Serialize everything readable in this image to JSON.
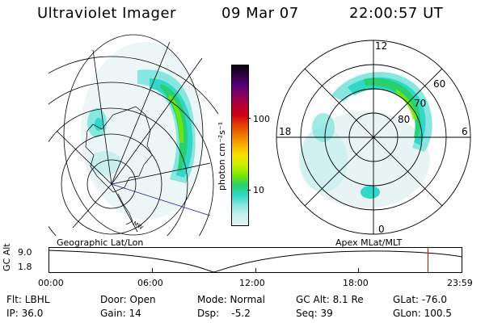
{
  "header": {
    "instrument": "Ultraviolet Imager",
    "date": "09 Mar 07",
    "time": "22:00:57 UT"
  },
  "colorbar": {
    "unit_label": "photon cm⁻²s⁻¹",
    "ticks": [
      "100",
      "10"
    ],
    "colors": [
      "#0a0010",
      "#300040",
      "#55007a",
      "#8a0060",
      "#b00035",
      "#d20014",
      "#e64000",
      "#f07800",
      "#f8b000",
      "#f8e000",
      "#c8f000",
      "#7ce800",
      "#28d070",
      "#30d8c8",
      "#88e6e0",
      "#c8eeee",
      "#e8f4f4"
    ]
  },
  "left_panel": {
    "caption": "Geographic Lat/Lon",
    "map_label": "MW"
  },
  "right_panel": {
    "caption": "Apex MLat/MLT",
    "mlt_labels": {
      "top": "12",
      "bottom": "0",
      "left": "18",
      "right": "6"
    },
    "lat_labels": [
      "60",
      "70",
      "80"
    ]
  },
  "timeline": {
    "axis_label": "GC Alt",
    "y_top": "9.0",
    "y_bottom": "1.8",
    "x_ticks": [
      "00:00",
      "06:00",
      "12:00",
      "18:00",
      "23:59"
    ],
    "current_time_fraction": 0.917,
    "marker_color": "#e00000"
  },
  "info": {
    "filter": "Flt: LBHL",
    "ip": "IP: 36.0",
    "door": "Door: Open",
    "gain": "Gain: 14",
    "mode": "Mode: Normal",
    "dsp": "Dsp:    -5.2",
    "gc_alt": "GC Alt: 8.1 Re",
    "seq": "Seq: 39",
    "glat": "GLat: -76.0",
    "glon": "GLon: 100.5"
  }
}
